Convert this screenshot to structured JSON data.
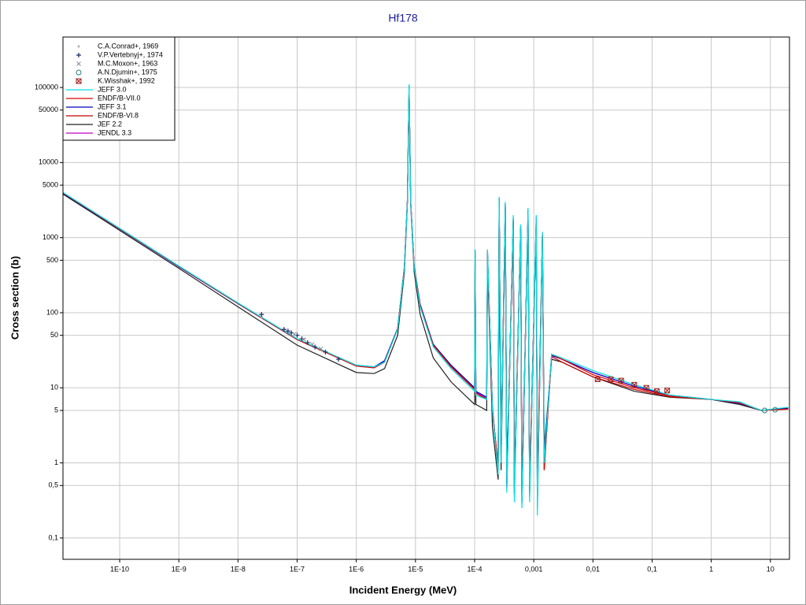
{
  "chart_data": {
    "type": "line",
    "title": "Hf178",
    "x_label": "Incident Energy (MeV)",
    "y_label": "Cross section (b)",
    "x_scale": "log",
    "y_scale": "log",
    "grid": true,
    "legend": "upper left",
    "xlim": [
      1.1e-11,
      21
    ],
    "ylim": [
      0.052,
      470000
    ],
    "xticks": [
      {
        "value": 1e-10,
        "label": "1E-10"
      },
      {
        "value": 1e-09,
        "label": "1E-9"
      },
      {
        "value": 1e-08,
        "label": "1E-8"
      },
      {
        "value": 1e-07,
        "label": "1E-7"
      },
      {
        "value": 1e-06,
        "label": "1E-6"
      },
      {
        "value": 1e-05,
        "label": "1E-5"
      },
      {
        "value": 0.0001,
        "label": "1E-4"
      },
      {
        "value": 0.001,
        "label": "0,001"
      },
      {
        "value": 0.01,
        "label": "0,01"
      },
      {
        "value": 0.1,
        "label": "0,1"
      },
      1,
      10
    ],
    "yticks": [
      {
        "value": 0.1,
        "label": "0,1"
      },
      {
        "value": 0.5,
        "label": "0,5"
      },
      1,
      5,
      10,
      50,
      100,
      500,
      1000,
      5000,
      10000,
      50000,
      100000
    ],
    "x": [
      1.1e-11,
      1e-10,
      1e-09,
      1e-08,
      1e-07,
      1e-06,
      2e-06,
      3e-06,
      5e-06,
      6.5e-06,
      7.3e-06,
      7.8e-06,
      8.3e-06,
      9.5e-06,
      1.2e-05,
      2e-05,
      4e-05,
      0.0001,
      0.000102,
      0.000105,
      0.00016,
      0.000165,
      0.0002,
      0.00025,
      0.00026,
      0.00028,
      0.00033,
      0.00035,
      0.00045,
      0.00047,
      0.0006,
      0.00063,
      0.0008,
      0.00085,
      0.0011,
      0.00115,
      0.0014,
      0.0015,
      0.002,
      0.003,
      0.01,
      0.05,
      0.2,
      1,
      3,
      7,
      20
    ],
    "points": [
      {
        "name": "C.A.Conrad+, 1969",
        "marker": "dot",
        "color": "#b0b0b0",
        "x": [
          2.5e-08
        ],
        "values": [
          88
        ]
      },
      {
        "name": "V.P.Vertebnyj+, 1974",
        "marker": "plus",
        "color": "#1a2a6a",
        "x": [
          2.5e-08,
          6e-08,
          7e-08,
          8e-08,
          1e-07,
          1.2e-07,
          1.5e-07,
          2e-07,
          3e-07,
          5e-07
        ],
        "values": [
          95,
          60,
          57,
          54,
          50,
          45,
          40,
          35,
          30,
          24
        ]
      },
      {
        "name": "M.C.Moxon+, 1963",
        "marker": "cross",
        "color": "#8a8a9a",
        "x": [
          9e-08,
          1.3e-07,
          1.8e-07,
          2.5e-07
        ],
        "values": [
          52,
          44,
          38,
          33
        ]
      },
      {
        "name": "A.N.Djumin+, 1975",
        "marker": "circle",
        "color": "#2a7a7a",
        "x": [
          8,
          12
        ],
        "values": [
          5,
          5.1
        ]
      },
      {
        "name": "K.Wisshak+, 1992",
        "marker": "square",
        "color": "#a02020",
        "x": [
          0.012,
          0.02,
          0.03,
          0.05,
          0.08,
          0.12,
          0.18
        ],
        "values": [
          13,
          13,
          12.5,
          11,
          10,
          9,
          9.2
        ]
      }
    ],
    "series": [
      {
        "name": "JEFF 3.0",
        "color": "#00e0e0",
        "values": [
          4000,
          1330,
          420,
          135,
          45,
          20,
          19,
          22,
          60,
          400,
          3000,
          110000,
          3000,
          400,
          120,
          35,
          18,
          9,
          700,
          8,
          7,
          700,
          5,
          0.7,
          3500,
          1,
          3000,
          0.4,
          2000,
          0.3,
          1500,
          0.25,
          2500,
          0.3,
          2000,
          0.2,
          1200,
          1,
          28,
          25,
          17,
          11,
          8,
          7,
          6.5,
          5,
          5.5
        ]
      },
      {
        "name": "ENDF/B-VII.0",
        "color": "#e00000",
        "values": [
          3950,
          1310,
          415,
          133,
          44,
          19.5,
          18.5,
          22,
          61,
          405,
          3050,
          100000,
          3050,
          410,
          125,
          37,
          19,
          9.5,
          600,
          8.5,
          7,
          600,
          5,
          0.9,
          3000,
          1.5,
          2600,
          0.6,
          1700,
          0.5,
          1300,
          0.4,
          2000,
          0.5,
          1500,
          0.5,
          1100,
          0.8,
          28,
          24,
          15,
          10,
          7.8,
          7,
          6.3,
          5,
          5.2
        ]
      },
      {
        "name": "JEFF 3.1",
        "color": "#0000c0",
        "values": [
          3900,
          1300,
          410,
          132,
          44,
          20,
          19,
          23,
          62,
          410,
          3100,
          105000,
          3100,
          420,
          130,
          38,
          20,
          10,
          650,
          9,
          7.5,
          650,
          5.5,
          0.8,
          3300,
          1.2,
          2800,
          0.5,
          1800,
          0.4,
          1400,
          0.3,
          2300,
          0.4,
          1800,
          0.3,
          1100,
          1.2,
          27,
          24,
          16,
          10.5,
          8,
          7,
          6.2,
          5,
          5.4
        ]
      },
      {
        "name": "ENDF/B-VI.8",
        "color": "#c00000",
        "values": [
          3950,
          1310,
          415,
          133,
          44,
          19.5,
          18.5,
          22,
          61,
          405,
          3050,
          100000,
          3050,
          410,
          125,
          37,
          19,
          9.5,
          600,
          8.5,
          7,
          600,
          5,
          0.9,
          3000,
          1.5,
          2600,
          0.6,
          1700,
          0.5,
          1300,
          0.4,
          2000,
          0.5,
          1500,
          0.5,
          1100,
          0.8,
          26,
          22,
          14,
          9.5,
          7.6,
          7,
          6.4,
          5,
          5.3
        ]
      },
      {
        "name": "JEF 2.2",
        "color": "#202020",
        "values": [
          3800,
          1250,
          390,
          120,
          37,
          16,
          15.5,
          18,
          50,
          350,
          2800,
          95000,
          2800,
          350,
          95,
          25,
          12,
          6,
          500,
          6,
          5,
          500,
          3,
          0.6,
          3000,
          0.8,
          2500,
          0.5,
          1700,
          0.4,
          1300,
          0.3,
          2000,
          0.4,
          1500,
          0.3,
          1000,
          1.5,
          24,
          22,
          14,
          9,
          7.5,
          7,
          6,
          5,
          5.4
        ]
      },
      {
        "name": "JENDL 3.3",
        "color": "#c000c0",
        "values": [
          3920,
          1305,
          412,
          133,
          44,
          20,
          19,
          22.5,
          61,
          405,
          3050,
          108000,
          3050,
          410,
          128,
          37,
          19.5,
          9.8,
          680,
          8.8,
          7.3,
          680,
          5.3,
          0.75,
          3400,
          1.1,
          2900,
          0.45,
          1900,
          0.35,
          1450,
          0.28,
          2400,
          0.35,
          1900,
          0.25,
          1150,
          1.1,
          27,
          24,
          16,
          10.5,
          7.9,
          7,
          6.3,
          5,
          5.3
        ]
      }
    ]
  }
}
